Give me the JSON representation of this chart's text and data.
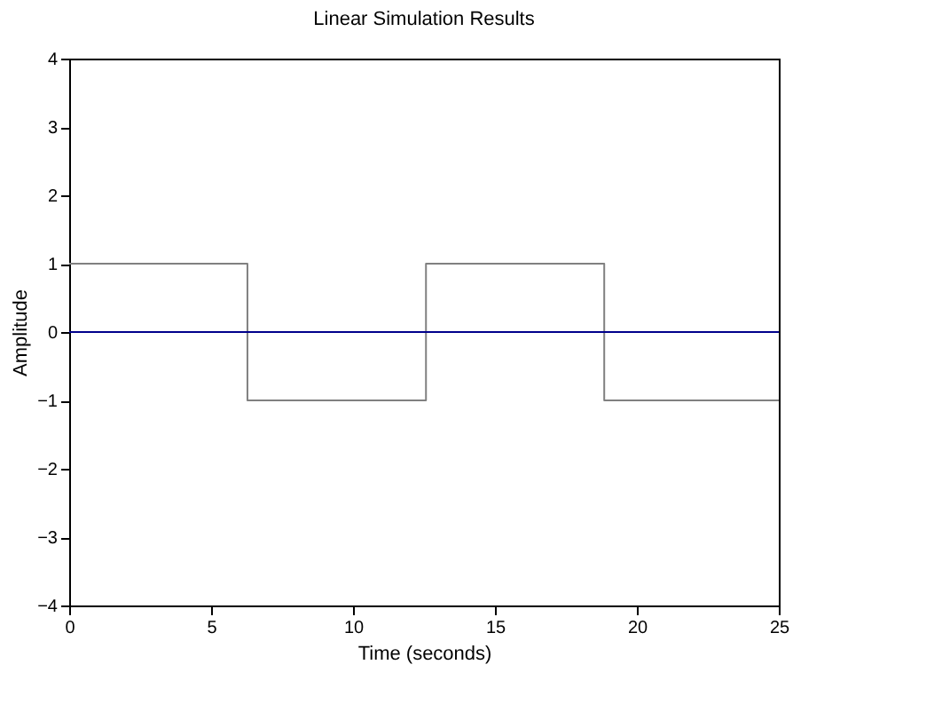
{
  "chart_data": {
    "type": "line",
    "title": "Linear Simulation Results",
    "xlabel": "Time (seconds)",
    "ylabel": "Amplitude",
    "xlim": [
      0,
      25
    ],
    "xticks": [
      0,
      5,
      10,
      15,
      20,
      25
    ],
    "ylim": [
      -4,
      4
    ],
    "yticks": [
      -4,
      -3,
      -2,
      -1,
      0,
      1,
      2,
      3,
      4
    ],
    "grid": false,
    "series": [
      {
        "type": "step",
        "color": "#808080",
        "x": [
          0,
          6.28,
          12.57,
          18.85,
          25
        ],
        "values": [
          1,
          -1,
          1,
          -1,
          -1
        ]
      },
      {
        "color": "#00008b",
        "x": [
          0,
          25
        ],
        "values": [
          0,
          0
        ]
      }
    ]
  }
}
